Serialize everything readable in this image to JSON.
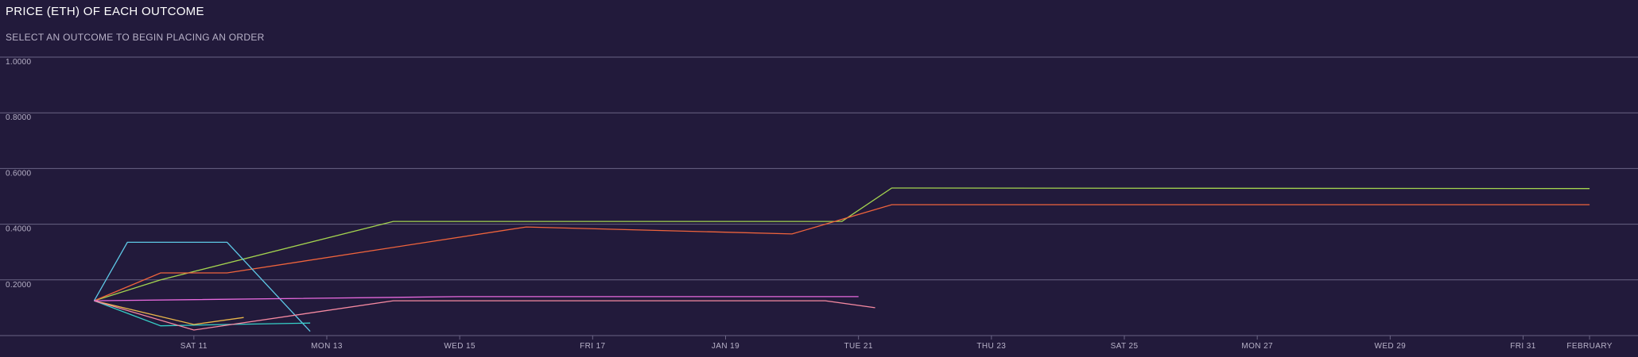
{
  "header": {
    "title": "PRICE (ETH) OF EACH OUTCOME",
    "subtitle": "SELECT AN OUTCOME TO BEGIN PLACING AN ORDER"
  },
  "chart_data": {
    "type": "line",
    "x_unit": "date",
    "xlim": [
      "2023-01-08T04:00",
      "2023-02-01T06:00"
    ],
    "ylim": [
      0,
      1
    ],
    "y_ticks": [
      {
        "value": 1.0,
        "label": "1.0000"
      },
      {
        "value": 0.8,
        "label": "0.8000"
      },
      {
        "value": 0.6,
        "label": "0.6000"
      },
      {
        "value": 0.4,
        "label": "0.4000"
      },
      {
        "value": 0.2,
        "label": "0.2000"
      }
    ],
    "x_ticks": [
      {
        "x": "2023-01-11",
        "label": "SAT 11"
      },
      {
        "x": "2023-01-13",
        "label": "MON 13"
      },
      {
        "x": "2023-01-15",
        "label": "WED 15"
      },
      {
        "x": "2023-01-17",
        "label": "FRI 17"
      },
      {
        "x": "2023-01-19",
        "label": "JAN 19"
      },
      {
        "x": "2023-01-21",
        "label": "TUE 21"
      },
      {
        "x": "2023-01-23",
        "label": "THU 23"
      },
      {
        "x": "2023-01-25",
        "label": "SAT 25"
      },
      {
        "x": "2023-01-27",
        "label": "MON 27"
      },
      {
        "x": "2023-01-29",
        "label": "WED 29"
      },
      {
        "x": "2023-01-31",
        "label": "FRI 31"
      },
      {
        "x": "2023-02-01",
        "label": "FEBRUARY"
      }
    ],
    "grid": true,
    "series": [
      {
        "color": "#a4d44f",
        "points": [
          [
            "2023-01-09T12:00",
            0.125
          ],
          [
            "2023-01-10T12:00",
            0.2
          ],
          [
            "2023-01-14T00:00",
            0.41
          ],
          [
            "2023-01-20T18:00",
            0.41
          ],
          [
            "2023-01-21T12:00",
            0.53
          ],
          [
            "2023-02-01T00:00",
            0.528
          ]
        ]
      },
      {
        "color": "#f0643c",
        "points": [
          [
            "2023-01-09T12:00",
            0.125
          ],
          [
            "2023-01-10T12:00",
            0.225
          ],
          [
            "2023-01-11T12:00",
            0.225
          ],
          [
            "2023-01-16T00:00",
            0.39
          ],
          [
            "2023-01-20T00:00",
            0.365
          ],
          [
            "2023-01-21T12:00",
            0.47
          ],
          [
            "2023-02-01T00:00",
            0.47
          ]
        ]
      },
      {
        "color": "#5ec8e6",
        "points": [
          [
            "2023-01-09T12:00",
            0.125
          ],
          [
            "2023-01-10T00:00",
            0.335
          ],
          [
            "2023-01-11T12:00",
            0.335
          ],
          [
            "2023-01-12T18:00",
            0.015
          ]
        ]
      },
      {
        "color": "#36d0c8",
        "points": [
          [
            "2023-01-09T12:00",
            0.125
          ],
          [
            "2023-01-10T12:00",
            0.035
          ],
          [
            "2023-01-11T12:00",
            0.04
          ],
          [
            "2023-01-12T18:00",
            0.045
          ]
        ]
      },
      {
        "color": "#e8b64a",
        "points": [
          [
            "2023-01-09T12:00",
            0.125
          ],
          [
            "2023-01-11T00:00",
            0.04
          ],
          [
            "2023-01-11T18:00",
            0.065
          ]
        ]
      },
      {
        "color": "#f78aa2",
        "points": [
          [
            "2023-01-09T12:00",
            0.125
          ],
          [
            "2023-01-11T00:00",
            0.02
          ],
          [
            "2023-01-14T00:00",
            0.125
          ],
          [
            "2023-01-20T12:00",
            0.125
          ],
          [
            "2023-01-21T06:00",
            0.1
          ]
        ]
      },
      {
        "color": "#e86adf",
        "points": [
          [
            "2023-01-09T12:00",
            0.125
          ],
          [
            "2023-01-15T00:00",
            0.14
          ],
          [
            "2023-01-21T00:00",
            0.14
          ]
        ]
      }
    ]
  }
}
